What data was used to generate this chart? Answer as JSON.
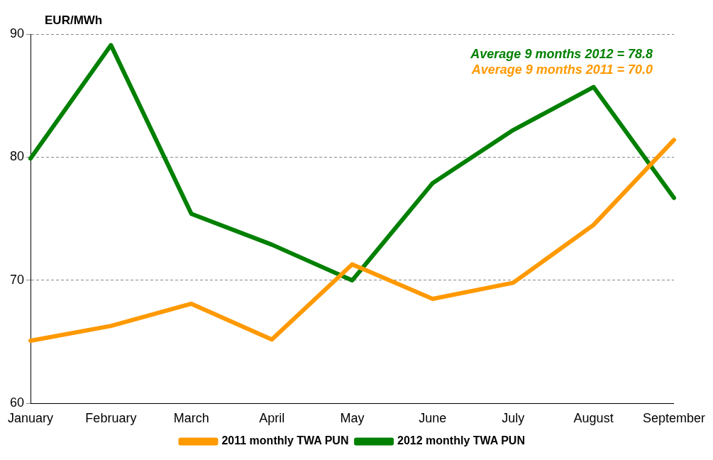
{
  "chart_data": {
    "type": "line",
    "ylabel": "EUR/MWh",
    "categories": [
      "January",
      "February",
      "March",
      "April",
      "May",
      "June",
      "July",
      "August",
      "September"
    ],
    "series": [
      {
        "name": "2011 monthly TWA PUN",
        "color": "#ff9900",
        "values": [
          65.1,
          66.3,
          68.1,
          65.2,
          71.3,
          68.5,
          69.8,
          74.5,
          81.4
        ]
      },
      {
        "name": "2012 monthly TWA PUN",
        "color": "#008000",
        "values": [
          79.9,
          89.1,
          75.4,
          72.9,
          70.0,
          77.9,
          82.2,
          85.7,
          76.7
        ]
      }
    ],
    "annotations": [
      "Average 9 months 2012 = 78.8",
      "Average 9 months 2011 = 70.0"
    ],
    "ylim": [
      60,
      90
    ],
    "yticks": [
      60,
      70,
      80,
      90
    ],
    "grid": "y",
    "legend": "bottom",
    "marker": "none",
    "line_style": "solid"
  }
}
